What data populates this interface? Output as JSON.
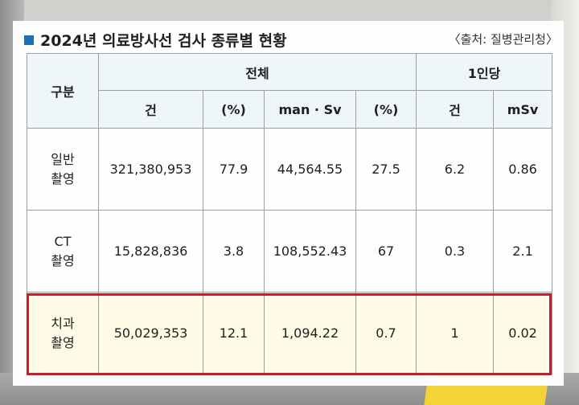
{
  "title": "2024년 의료방사선 검사 종류별 현황",
  "source": "〈출처: 질병관리청〉",
  "table": {
    "group_header": "구분",
    "group_total": "전체",
    "group_per_capita": "1인당",
    "sub_headers": [
      "건",
      "(%)",
      "man · Sv",
      "(%)",
      "건",
      "mSv"
    ],
    "rows": [
      {
        "label_line1": "일반",
        "label_line2": "촬영",
        "cells": [
          "321,380,953",
          "77.9",
          "44,564.55",
          "27.5",
          "6.2",
          "0.86"
        ]
      },
      {
        "label_line1": "CT",
        "label_line2": "촬영",
        "cells": [
          "15,828,836",
          "3.8",
          "108,552.43",
          "67",
          "0.3",
          "2.1"
        ]
      },
      {
        "label_line1": "치과",
        "label_line2": "촬영",
        "cells": [
          "50,029,353",
          "12.1",
          "1,094.22",
          "0.7",
          "1",
          "0.02"
        ]
      }
    ]
  },
  "colors": {
    "accent_square": "#1f6fb5",
    "header_bg": "#eef6f8",
    "highlight_border": "#c51d2c",
    "highlight_bg": "#fffbe6"
  }
}
